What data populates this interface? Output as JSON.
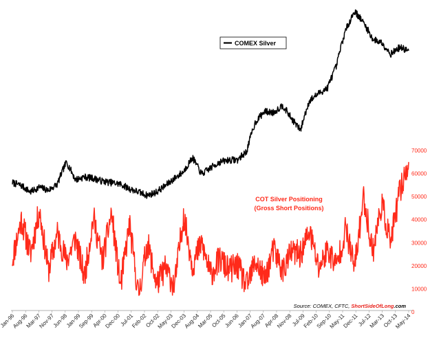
{
  "chart_data": {
    "type": "line",
    "title": "",
    "x_labels": [
      "Jan-96",
      "Aug-96",
      "Mar-97",
      "Nov-97",
      "Jun-98",
      "Jan-99",
      "Sep-99",
      "Apr-00",
      "Dec-00",
      "Jul-01",
      "Feb-02",
      "Oct-02",
      "May-03",
      "Dec-03",
      "Aug-04",
      "Mar-05",
      "Oct-05",
      "Jun-06",
      "Jan-07",
      "Aug-07",
      "Apr-08",
      "Nov-08",
      "Jul-09",
      "Feb-10",
      "Sep-10",
      "May-11",
      "Dec-11",
      "Jul-12",
      "Mar-13",
      "Oct-13",
      "May-14"
    ],
    "right_axis": {
      "ticks": [
        "0",
        "10000",
        "20000",
        "30000",
        "40000",
        "50000",
        "60000",
        "70000"
      ],
      "ylim": [
        0,
        70000
      ],
      "color": "#ff2a1a"
    },
    "series": [
      {
        "name": "COMEX Silver",
        "color": "#000000",
        "axis": "left",
        "values": [
          5.2,
          5.0,
          4.6,
          4.9,
          4.7,
          5.1,
          6.8,
          5.4,
          5.6,
          5.5,
          5.3,
          5.2,
          5.1,
          4.8,
          4.6,
          4.4,
          4.6,
          5.0,
          5.5,
          6.0,
          7.2,
          5.8,
          6.3,
          6.8,
          7.0,
          7.0,
          7.8,
          11.5,
          13.2,
          13.0,
          14.3,
          12.0,
          10.3,
          15.2,
          16.7,
          18.0,
          24.0,
          38.0,
          49.0,
          42.0,
          34.0,
          32.5,
          28.0,
          30.5,
          29.2
        ]
      },
      {
        "name": "COT Silver Positioning (Gross Short Positions)",
        "color": "#ff2a1a",
        "axis": "right",
        "values": [
          23000,
          40000,
          25000,
          44000,
          18000,
          34000,
          22000,
          32000,
          15000,
          41000,
          22000,
          43000,
          11000,
          38000,
          7000,
          30000,
          12000,
          19000,
          11000,
          42000,
          20000,
          30000,
          16000,
          23000,
          18000,
          20000,
          11000,
          22000,
          14000,
          27000,
          18000,
          26000,
          25000,
          35000,
          19000,
          27000,
          20000,
          36000,
          19000,
          50000,
          26000,
          47000,
          30000,
          52000,
          65000
        ]
      }
    ],
    "annotations": {
      "legend_label": "COMEX Silver",
      "cot_label_line1": "COT Silver Positioning",
      "cot_label_line2": "(Gross Short Positions)",
      "source_prefix": "Source: COMEX, CFTC, ",
      "source_brand": "ShortSideOfLong",
      "source_suffix": ".com"
    }
  }
}
